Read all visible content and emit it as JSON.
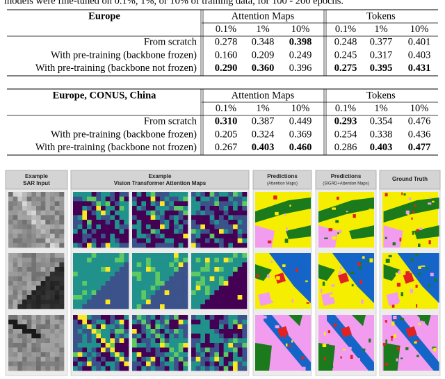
{
  "intro_text": "models were fine-tuned on 0.1%, 1%, or 10% of training data, for 100 - 200 epochs.",
  "tables": [
    {
      "title": "Europe",
      "group_headers": [
        "Attention Maps",
        "Tokens"
      ],
      "column_headers": [
        "0.1%",
        "1%",
        "10%",
        "0.1%",
        "1%",
        "10%"
      ],
      "rows": [
        {
          "label": "From scratch",
          "cells": [
            {
              "text": "0.278"
            },
            {
              "text": "0.348"
            },
            {
              "text": "0.398",
              "bold": true
            },
            {
              "text": "0.248"
            },
            {
              "text": "0.377"
            },
            {
              "text": "0.401"
            }
          ]
        },
        {
          "label": "With pre-training (backbone frozen)",
          "cells": [
            {
              "text": "0.160"
            },
            {
              "text": "0.209"
            },
            {
              "text": "0.249"
            },
            {
              "text": "0.245"
            },
            {
              "text": "0.317"
            },
            {
              "text": "0.403"
            }
          ]
        },
        {
          "label": "With pre-training (backbone not frozen)",
          "cells": [
            {
              "text": "0.290",
              "bold": true
            },
            {
              "text": "0.360",
              "bold": true
            },
            {
              "text": "0.396"
            },
            {
              "text": "0.275",
              "bold": true
            },
            {
              "text": "0.395",
              "bold": true
            },
            {
              "text": "0.431",
              "bold": true
            }
          ]
        }
      ]
    },
    {
      "title": "Europe, CONUS, China",
      "group_headers": [
        "Attention Maps",
        "Tokens"
      ],
      "column_headers": [
        "0.1%",
        "1%",
        "10%",
        "0.1%",
        "1%",
        "10%"
      ],
      "rows": [
        {
          "label": "From scratch",
          "cells": [
            {
              "text": "0.310",
              "bold": true
            },
            {
              "text": "0.387"
            },
            {
              "text": "0.449"
            },
            {
              "text": "0.293",
              "bold": true
            },
            {
              "text": "0.354"
            },
            {
              "text": "0.476",
              "color": "#e02020"
            }
          ]
        },
        {
          "label": "With pre-training (backbone frozen)",
          "cells": [
            {
              "text": "0.205"
            },
            {
              "text": "0.324"
            },
            {
              "text": "0.369"
            },
            {
              "text": "0.254"
            },
            {
              "text": "0.338"
            },
            {
              "text": "0.436"
            }
          ]
        },
        {
          "label": "With pre-training (backbone not frozen)",
          "cells": [
            {
              "text": "0.267"
            },
            {
              "text": "0.403",
              "bold": true
            },
            {
              "text": "0.460",
              "bold": true
            },
            {
              "text": "0.286"
            },
            {
              "text": "0.403",
              "bold": true
            },
            {
              "text": "0.477",
              "bold": true
            }
          ]
        }
      ]
    }
  ],
  "figure": {
    "column_headers": [
      {
        "title": "Example",
        "subtitle": "SAR Input"
      },
      {
        "title": "Example",
        "subtitle": "Vision Transformer Attention Maps"
      },
      {
        "title": "Predictions",
        "subtitle": "(Attention Maps)"
      },
      {
        "title": "Predictions",
        "subtitle": "(SIGRD+Attention Maps)"
      },
      {
        "title": "Ground Truth"
      }
    ]
  }
}
